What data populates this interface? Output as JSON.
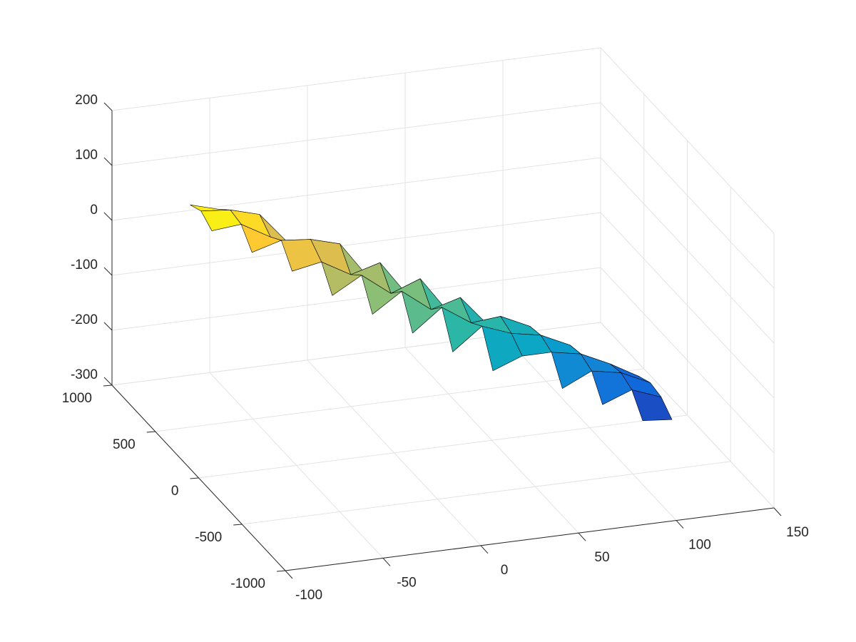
{
  "chart_data": {
    "type": "surface",
    "x": [
      -60,
      -45,
      -30,
      -15,
      0,
      15,
      30,
      45,
      60,
      75,
      90,
      105,
      120
    ],
    "y": [
      -500,
      -375,
      -250,
      -125,
      0,
      125,
      250,
      375,
      500,
      625,
      750,
      875,
      1000
    ],
    "z": [
      [
        null,
        null,
        null,
        null,
        null,
        null,
        null,
        null,
        null,
        null,
        null,
        -205,
        -210
      ],
      [
        null,
        null,
        null,
        null,
        null,
        null,
        null,
        null,
        null,
        null,
        -190,
        -170,
        -190
      ],
      [
        null,
        null,
        null,
        null,
        null,
        null,
        null,
        null,
        null,
        -175,
        -150,
        -160,
        -185
      ],
      [
        null,
        null,
        null,
        null,
        null,
        null,
        null,
        -150,
        -130,
        -130,
        -140,
        -165,
        -195
      ],
      [
        null,
        null,
        null,
        null,
        null,
        null,
        -130,
        -90,
        -110,
        -120,
        -145,
        -195,
        -215
      ],
      [
        null,
        null,
        null,
        null,
        null,
        -110,
        -70,
        -105,
        -100,
        -125,
        -180,
        null,
        null
      ],
      [
        null,
        null,
        null,
        null,
        -90,
        -55,
        -95,
        -80,
        -140,
        -165,
        null,
        null,
        null
      ],
      [
        null,
        null,
        null,
        -70,
        -40,
        -80,
        -60,
        -130,
        null,
        null,
        null,
        null,
        null
      ],
      [
        null,
        null,
        -40,
        -30,
        -60,
        -45,
        -115,
        null,
        null,
        null,
        null,
        null,
        null
      ],
      [
        null,
        -20,
        -5,
        -10,
        -25,
        -95,
        null,
        null,
        null,
        null,
        null,
        null,
        null
      ],
      [
        5,
        10,
        -20,
        -45,
        -80,
        null,
        null,
        null,
        null,
        null,
        null,
        null,
        null
      ],
      [
        20,
        15,
        0,
        -60,
        null,
        null,
        null,
        null,
        null,
        null,
        null,
        null,
        null
      ],
      [
        10,
        -5,
        -30,
        null,
        null,
        null,
        null,
        null,
        null,
        null,
        null,
        null,
        null
      ]
    ],
    "xlim": [
      -100,
      150
    ],
    "ylim": [
      -1000,
      1000
    ],
    "zlim": [
      -300,
      200
    ],
    "xticks": [
      -100,
      -50,
      0,
      50,
      100,
      150
    ],
    "yticks": [
      -1000,
      -500,
      0,
      500,
      1000
    ],
    "zticks": [
      -300,
      -200,
      -100,
      0,
      100,
      200
    ],
    "grid": true,
    "colormap": "parula",
    "edgecolor": "#000000"
  }
}
